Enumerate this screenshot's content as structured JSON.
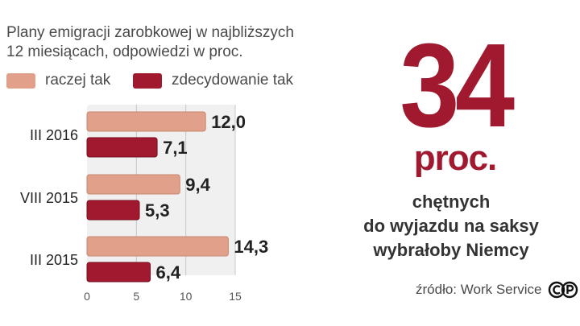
{
  "title": {
    "line1": "Plany emigracji zarobkowej w najbliższych",
    "line2": "12 miesiącach, odpowiedzi w proc."
  },
  "legend": [
    {
      "label": "raczej tak",
      "color": "#e0a08a"
    },
    {
      "label": "zdecydowanie tak",
      "color": "#a0192e"
    }
  ],
  "highlight": {
    "value": "34",
    "unit": "proc.",
    "caption": [
      "chętnych",
      "do wyjazdu na saksy",
      "wybrałoby Niemcy"
    ]
  },
  "source": "źródło: Work Service",
  "colors": {
    "accent": "#a0192e",
    "light": "#e0a08a",
    "plot_bg": "#f0f0f0"
  },
  "chart_data": {
    "type": "bar",
    "orientation": "horizontal",
    "categories": [
      "III 2016",
      "VIII 2015",
      "III 2015"
    ],
    "series": [
      {
        "name": "raczej tak",
        "values": [
          12.0,
          9.4,
          14.3
        ]
      },
      {
        "name": "zdecydowanie tak",
        "values": [
          7.1,
          5.3,
          6.4
        ]
      }
    ],
    "value_labels": [
      [
        "12,0",
        "9,4",
        "14,3"
      ],
      [
        "7,1",
        "5,3",
        "6,4"
      ]
    ],
    "xlim": [
      0,
      15
    ],
    "xticks": [
      0,
      5,
      10,
      15
    ],
    "grid": true,
    "legend_position": "top-left"
  }
}
